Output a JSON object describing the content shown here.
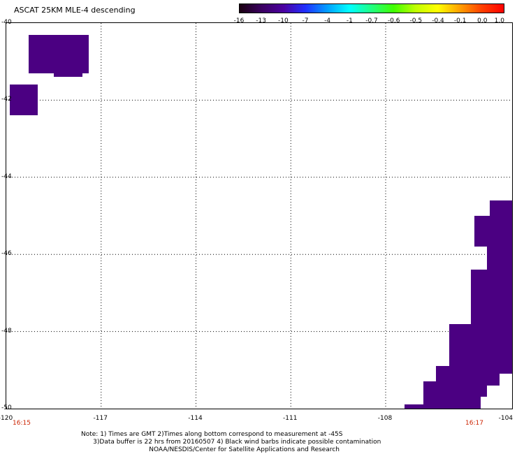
{
  "title": "ASCAT 25KM MLE-4 descending",
  "colorbar": {
    "labels": [
      "-16",
      "-13",
      "-10",
      "-7",
      "-4",
      "-1",
      "-0.7",
      "-0.6",
      "-0.5",
      "-0.4",
      "-0.1",
      "0.0",
      "1.0"
    ],
    "colors": [
      "#1a0010",
      "#3a0060",
      "#4b00a0",
      "#2030ff",
      "#00a0ff",
      "#00ffff",
      "#20ff80",
      "#40ff00",
      "#c0ff00",
      "#ffff00",
      "#ffa000",
      "#ff4000",
      "#ff0000"
    ]
  },
  "map": {
    "lon_range": [
      -120,
      -104
    ],
    "lat_range": [
      -40,
      -50
    ],
    "lon_ticks": [
      "-120",
      "-117",
      "-114",
      "-111",
      "-108",
      "-104"
    ],
    "lat_ticks": [
      "-40",
      "-42",
      "-44",
      "-46",
      "-48",
      "-50"
    ],
    "time_left": "16:15",
    "time_right": "16:17",
    "data_color": "#4b0082",
    "cells": [
      {
        "lon": -119.3,
        "lat": -40.3,
        "w": 1.9,
        "h": 1.0
      },
      {
        "lon": -118.5,
        "lat": -40.7,
        "w": 0.9,
        "h": 0.7
      },
      {
        "lon": -119.9,
        "lat": -41.6,
        "w": 0.9,
        "h": 0.8
      },
      {
        "lon": -104.7,
        "lat": -44.6,
        "w": 0.7,
        "h": 0.5
      },
      {
        "lon": -105.2,
        "lat": -45.0,
        "w": 1.2,
        "h": 0.8
      },
      {
        "lon": -104.8,
        "lat": -45.6,
        "w": 0.8,
        "h": 3.5
      },
      {
        "lon": -105.3,
        "lat": -46.4,
        "w": 0.5,
        "h": 1.5
      },
      {
        "lon": -106.0,
        "lat": -47.8,
        "w": 1.3,
        "h": 0.8
      },
      {
        "lon": -105.3,
        "lat": -48.0,
        "w": 0.9,
        "h": 1.4
      },
      {
        "lon": -106.0,
        "lat": -48.6,
        "w": 1.2,
        "h": 1.1
      },
      {
        "lon": -106.4,
        "lat": -48.9,
        "w": 1.4,
        "h": 1.2
      },
      {
        "lon": -106.8,
        "lat": -49.3,
        "w": 1.5,
        "h": 0.8
      },
      {
        "lon": -107.4,
        "lat": -49.9,
        "w": 1.4,
        "h": 0.5
      }
    ]
  },
  "notes": [
    "Note: 1) Times are GMT 2)Times along bottom correspond to measurement at -45S",
    "      3)Data buffer is 22 hrs from 20160507 4) Black wind barbs indicate possible contamination",
    "                                  NOAA/NESDIS/Center for Satellite Applications and Research"
  ]
}
